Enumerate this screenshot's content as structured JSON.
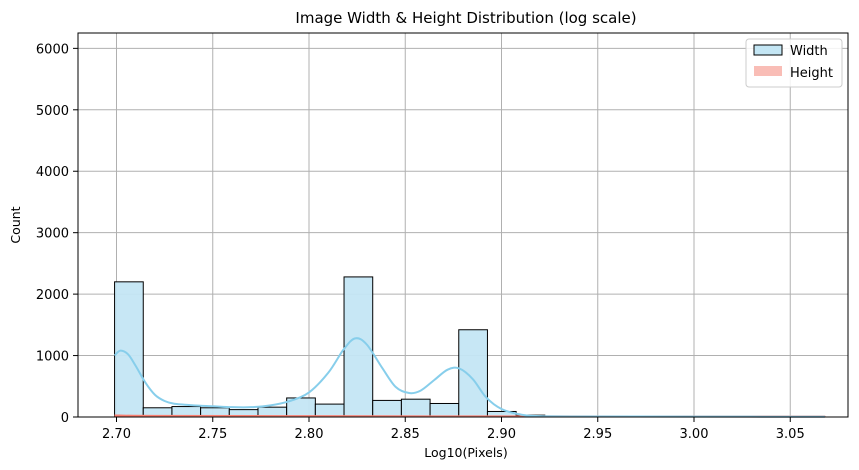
{
  "chart_data": {
    "type": "histogram",
    "title": "Image Width & Height Distribution (log scale)",
    "xlabel": "Log10(Pixels)",
    "ylabel": "Count",
    "xlim": [
      2.68,
      3.08
    ],
    "ylim": [
      0,
      6250
    ],
    "xticks": [
      "2.70",
      "2.75",
      "2.80",
      "2.85",
      "2.90",
      "2.95",
      "3.00",
      "3.05"
    ],
    "yticks": [
      "0",
      "1000",
      "2000",
      "3000",
      "4000",
      "5000",
      "6000"
    ],
    "grid": true,
    "legend_position": "top-right",
    "series": [
      {
        "name": "Width",
        "color": "#87ceeb",
        "fill": "#c4e6f4",
        "edge": "#000000",
        "bins": [
          {
            "x0": 2.699,
            "x1": 2.7139,
            "count": 2200
          },
          {
            "x0": 2.7139,
            "x1": 2.7288,
            "count": 150
          },
          {
            "x0": 2.7288,
            "x1": 2.7437,
            "count": 170
          },
          {
            "x0": 2.7437,
            "x1": 2.7586,
            "count": 150
          },
          {
            "x0": 2.7586,
            "x1": 2.7735,
            "count": 120
          },
          {
            "x0": 2.7735,
            "x1": 2.7884,
            "count": 160
          },
          {
            "x0": 2.7884,
            "x1": 2.8033,
            "count": 310
          },
          {
            "x0": 2.8033,
            "x1": 2.8182,
            "count": 210
          },
          {
            "x0": 2.8182,
            "x1": 2.8331,
            "count": 2280
          },
          {
            "x0": 2.8331,
            "x1": 2.848,
            "count": 270
          },
          {
            "x0": 2.848,
            "x1": 2.8629,
            "count": 290
          },
          {
            "x0": 2.8629,
            "x1": 2.8778,
            "count": 220
          },
          {
            "x0": 2.8778,
            "x1": 2.8927,
            "count": 1420
          },
          {
            "x0": 2.8927,
            "x1": 2.9076,
            "count": 90
          },
          {
            "x0": 2.9076,
            "x1": 2.9225,
            "count": 30
          },
          {
            "x0": 2.9225,
            "x1": 2.9374,
            "count": 15
          },
          {
            "x0": 2.9374,
            "x1": 2.9523,
            "count": 8
          },
          {
            "x0": 2.9523,
            "x1": 2.9672,
            "count": 5
          },
          {
            "x0": 2.9672,
            "x1": 2.9821,
            "count": 4
          },
          {
            "x0": 2.9821,
            "x1": 2.997,
            "count": 4
          },
          {
            "x0": 2.997,
            "x1": 3.0119,
            "count": 3
          },
          {
            "x0": 3.0119,
            "x1": 3.0268,
            "count": 3
          },
          {
            "x0": 3.0268,
            "x1": 3.0417,
            "count": 2
          },
          {
            "x0": 3.0417,
            "x1": 3.0566,
            "count": 2
          },
          {
            "x0": 3.0566,
            "x1": 3.068,
            "count": 2
          }
        ],
        "kde": [
          [
            2.699,
            1000
          ],
          [
            2.702,
            1080
          ],
          [
            2.706,
            1020
          ],
          [
            2.71,
            830
          ],
          [
            2.715,
            560
          ],
          [
            2.72,
            360
          ],
          [
            2.725,
            260
          ],
          [
            2.73,
            215
          ],
          [
            2.74,
            190
          ],
          [
            2.75,
            175
          ],
          [
            2.76,
            160
          ],
          [
            2.77,
            160
          ],
          [
            2.78,
            190
          ],
          [
            2.79,
            260
          ],
          [
            2.8,
            400
          ],
          [
            2.81,
            720
          ],
          [
            2.818,
            1100
          ],
          [
            2.824,
            1280
          ],
          [
            2.83,
            1180
          ],
          [
            2.838,
            800
          ],
          [
            2.845,
            490
          ],
          [
            2.852,
            390
          ],
          [
            2.858,
            430
          ],
          [
            2.865,
            600
          ],
          [
            2.872,
            770
          ],
          [
            2.878,
            790
          ],
          [
            2.885,
            620
          ],
          [
            2.892,
            320
          ],
          [
            2.9,
            130
          ],
          [
            2.91,
            40
          ],
          [
            2.92,
            15
          ],
          [
            2.95,
            8
          ],
          [
            3.0,
            6
          ],
          [
            3.068,
            4
          ]
        ]
      },
      {
        "name": "Height",
        "color": "#fa8072",
        "fill": "#f9bdb6",
        "edge": "#fa8072",
        "bins": [
          {
            "x0": 2.699,
            "x1": 3.068,
            "count": 15
          }
        ],
        "kde": [
          [
            2.699,
            25
          ],
          [
            2.72,
            18
          ],
          [
            2.8,
            14
          ],
          [
            2.9,
            10
          ],
          [
            3.0,
            8
          ],
          [
            3.068,
            6
          ]
        ]
      }
    ]
  }
}
